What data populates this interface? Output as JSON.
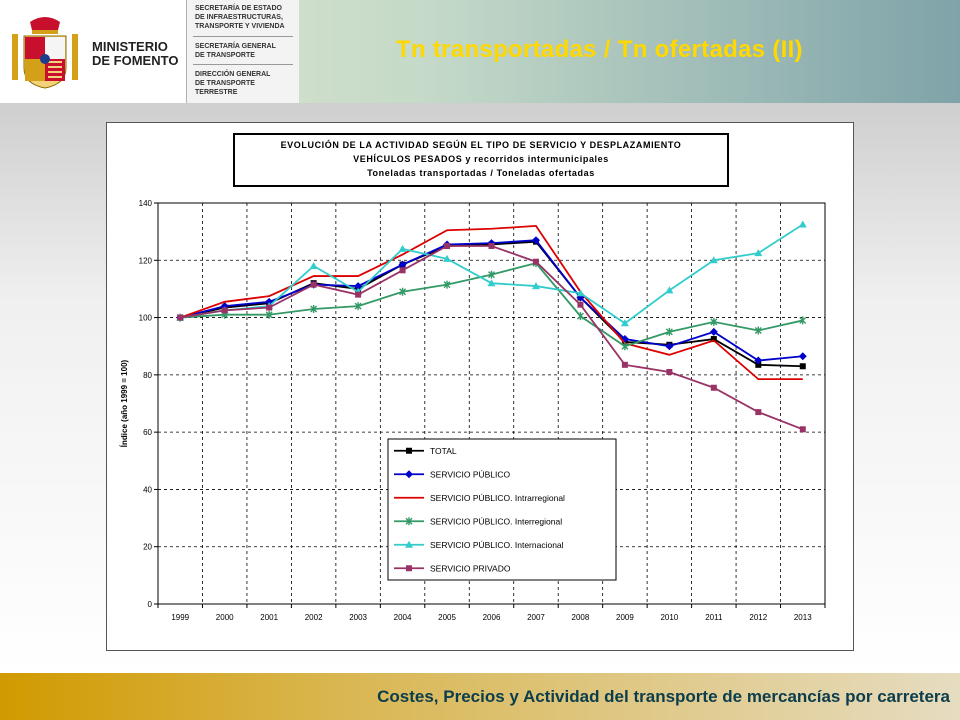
{
  "header": {
    "ministry": [
      "MINISTERIO",
      "DE FOMENTO"
    ],
    "departments": [
      "SECRETARÍA DE ESTADO\nDE INFRAESTRUCTURAS,\nTRANSPORTE Y VIVIENDA",
      "SECRETARÍA GENERAL\nDE TRANSPORTE",
      "DIRECCIÓN GENERAL\nDE TRANSPORTE\nTERRESTRE"
    ],
    "slide_title": "Tn transportadas / Tn ofertadas (II)"
  },
  "footer": {
    "text": "Costes, Precios y Actividad del transporte de mercancías por carretera"
  },
  "colors": {
    "title": "#ffd800",
    "footer_text": "#0c3d4c"
  },
  "chart_data": {
    "type": "line",
    "title_lines": [
      "EVOLUCIÓN DE LA ACTIVIDAD SEGÚN EL TIPO DE SERVICIO Y DESPLAZAMIENTO",
      "VEHÍCULOS PESADOS y recorridos intermunicipales",
      "Toneladas transportadas / Toneladas ofertadas"
    ],
    "ylabel": "Índice (año 1999 = 100)",
    "xlabel": "",
    "ylim": [
      0,
      140
    ],
    "yticks": [
      0,
      20,
      40,
      60,
      80,
      100,
      120,
      140
    ],
    "grid": true,
    "x": [
      "1999",
      "2000",
      "2001",
      "2002",
      "2003",
      "2004",
      "2005",
      "2006",
      "2007",
      "2008",
      "2009",
      "2010",
      "2011",
      "2012",
      "2013"
    ],
    "series": [
      {
        "name": "TOTAL",
        "color": "#000000",
        "marker": "square",
        "values": [
          100,
          103.5,
          105,
          112,
          110,
          118.5,
          125,
          125.5,
          126.5,
          107,
          91.5,
          90.5,
          92.5,
          83.5,
          83
        ]
      },
      {
        "name": "SERVICIO PÚBLICO",
        "color": "#0000cc",
        "marker": "diamond",
        "values": [
          100,
          104,
          105.5,
          111.5,
          111,
          118.5,
          125.5,
          126,
          127,
          107,
          92.5,
          90,
          95,
          85,
          86.5
        ]
      },
      {
        "name": "SERVICIO PÚBLICO. Intrarregional",
        "color": "#dd0000",
        "marker": "none",
        "values": [
          100,
          105.5,
          107.5,
          114.5,
          114.5,
          122,
          130.5,
          131,
          132,
          109,
          91,
          87,
          92,
          78.5,
          78.5
        ]
      },
      {
        "name": "SERVICIO PÚBLICO. Interregional",
        "color": "#339966",
        "marker": "star",
        "values": [
          100,
          101,
          101,
          103,
          104,
          109,
          111.5,
          115,
          119,
          100.5,
          90,
          95,
          98.5,
          95.5,
          99
        ]
      },
      {
        "name": "SERVICIO PÚBLICO. Internacional",
        "color": "#33cccc",
        "marker": "triangle",
        "values": [
          100,
          102.5,
          104,
          118,
          109,
          124,
          120.5,
          112,
          111,
          108.5,
          98,
          109.5,
          120,
          122.5,
          132.5
        ]
      },
      {
        "name": "SERVICIO PRIVADO",
        "color": "#993366",
        "marker": "square",
        "values": [
          100,
          102.5,
          103.5,
          111.5,
          108,
          116.5,
          125,
          125,
          119.5,
          104.5,
          83.5,
          81,
          75.5,
          67,
          61
        ]
      }
    ],
    "legend_position": "bottom-center"
  }
}
